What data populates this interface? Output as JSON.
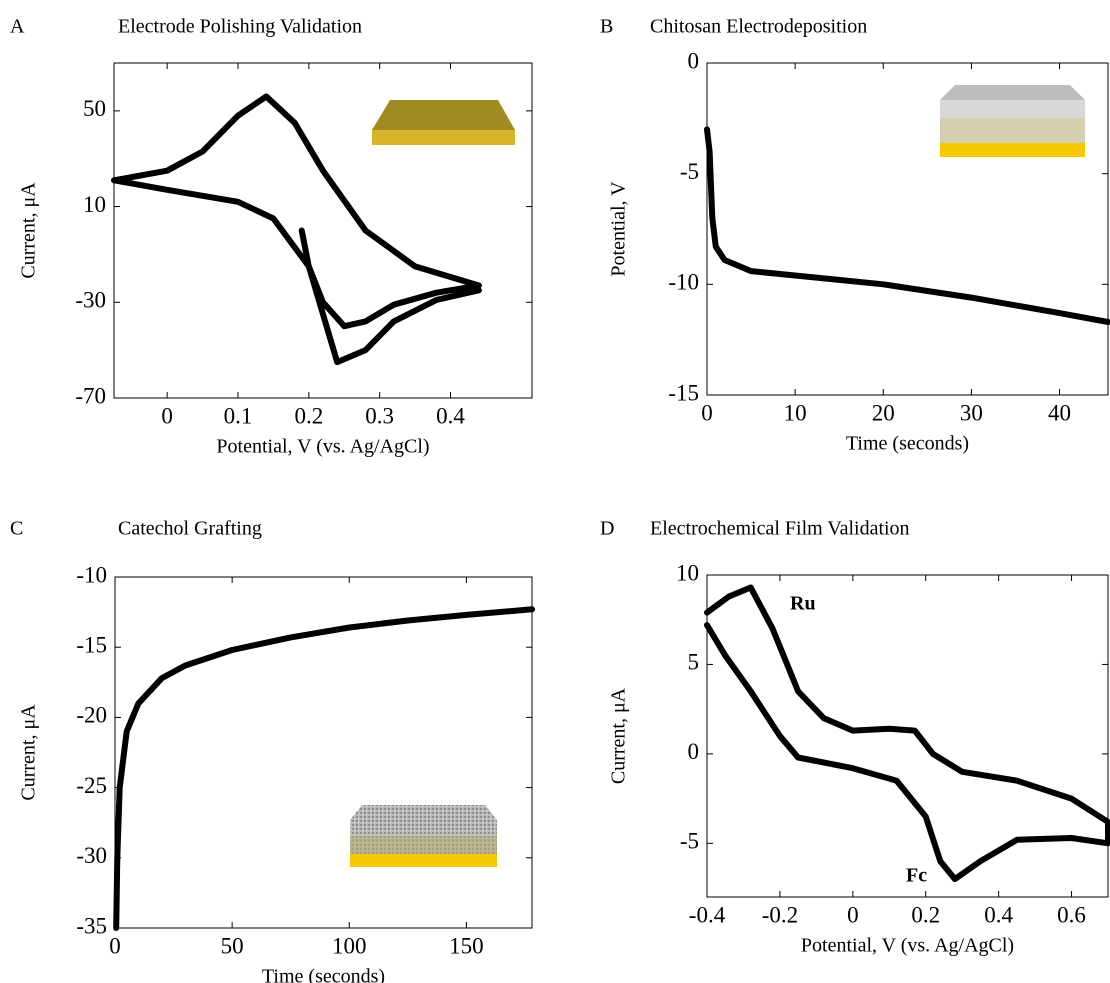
{
  "chart_data": [
    {
      "type": "line",
      "panel": "A",
      "title": "Electrode Polishing Validation",
      "xlabel": "Potential, V (vs. Ag/AgCl)",
      "ylabel": "Current, μA",
      "color": "#000000",
      "x": [
        0.19,
        0.2,
        0.22,
        0.25,
        0.28,
        0.32,
        0.38,
        0.44,
        0.35,
        0.28,
        0.22,
        0.18,
        0.14,
        0.1,
        0.05,
        0,
        -0.075,
        0,
        0.1,
        0.15,
        0.2,
        0.24,
        0.28,
        0.32,
        0.38,
        0.44
      ],
      "values": [
        0,
        -15,
        -30,
        -40,
        -38,
        -31,
        -26,
        -23,
        -15,
        0,
        25,
        45,
        56,
        48,
        33,
        25,
        21,
        17,
        12,
        5,
        -15,
        -55,
        -50,
        -38,
        -29,
        -25
      ],
      "xlim": [
        -0.075,
        0.515
      ],
      "ylim": [
        -70,
        70
      ],
      "xticks": [
        0,
        0.1,
        0.2,
        0.3,
        0.4
      ],
      "yticks": [
        -70,
        -30,
        10,
        50
      ]
    },
    {
      "type": "line",
      "panel": "B",
      "title": "Chitosan Electrodeposition",
      "xlabel": "Time (seconds)",
      "ylabel": "Potential, V",
      "color": "#000000",
      "x": [
        0,
        0.3,
        0.6,
        1,
        2,
        5,
        10,
        20,
        30,
        40,
        45.5
      ],
      "values": [
        -3,
        -4,
        -7,
        -8.3,
        -8.9,
        -9.4,
        -9.6,
        -10,
        -10.6,
        -11.3,
        -11.7
      ],
      "xlim": [
        0,
        45.5
      ],
      "ylim": [
        -15,
        0
      ],
      "xticks": [
        0,
        10,
        20,
        30,
        40
      ],
      "yticks": [
        -15,
        -10,
        -5,
        0
      ]
    },
    {
      "type": "line",
      "panel": "C",
      "title": "Catechol Grafting",
      "xlabel": "Time (seconds)",
      "ylabel": "Current, μA",
      "color": "#000000",
      "x": [
        0.5,
        1,
        2,
        5,
        10,
        20,
        30,
        50,
        75,
        100,
        125,
        150,
        178
      ],
      "values": [
        -35,
        -30,
        -25,
        -21,
        -19,
        -17.2,
        -16.3,
        -15.2,
        -14.3,
        -13.6,
        -13.1,
        -12.7,
        -12.3
      ],
      "xlim": [
        0,
        178
      ],
      "ylim": [
        -35,
        -10
      ],
      "xticks": [
        0,
        50,
        100,
        150
      ],
      "yticks": [
        -35,
        -30,
        -25,
        -20,
        -15,
        -10
      ]
    },
    {
      "type": "line",
      "panel": "D",
      "title": "Electrochemical Film Validation",
      "xlabel": "Potential, V (vs. Ag/AgCl)",
      "ylabel": "Current, μA",
      "color": "#000000",
      "x": [
        -0.4,
        -0.34,
        -0.28,
        -0.22,
        -0.15,
        -0.08,
        0,
        0.1,
        0.17,
        0.22,
        0.3,
        0.45,
        0.6,
        0.7,
        0.7,
        0.6,
        0.45,
        0.35,
        0.28,
        0.24,
        0.2,
        0.12,
        0,
        -0.15,
        -0.2,
        -0.28,
        -0.35,
        -0.4
      ],
      "values": [
        7.9,
        8.8,
        9.3,
        7,
        3.5,
        2,
        1.3,
        1.4,
        1.3,
        0,
        -1,
        -1.5,
        -2.5,
        -3.8,
        -5,
        -4.7,
        -4.8,
        -6,
        -7,
        -6,
        -3.5,
        -1.5,
        -0.8,
        -0.2,
        1,
        3.5,
        5.5,
        7.2
      ],
      "xlim": [
        -0.4,
        0.7
      ],
      "ylim": [
        -8,
        10
      ],
      "xticks": [
        -0.4,
        -0.2,
        0,
        0.2,
        0.4,
        0.6
      ],
      "yticks": [
        -5,
        0,
        5,
        10
      ],
      "annotations": [
        "Ru",
        "Fc"
      ]
    }
  ]
}
